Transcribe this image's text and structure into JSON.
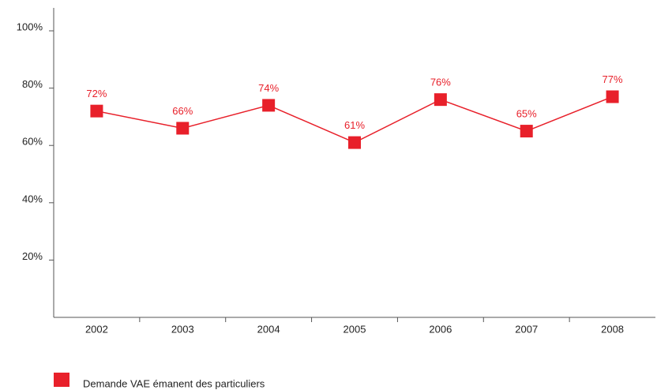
{
  "chart_data": {
    "type": "line",
    "categories": [
      "2002",
      "2003",
      "2004",
      "2005",
      "2006",
      "2007",
      "2008"
    ],
    "series": [
      {
        "name": "Demande VAE émanent des particuliers",
        "color": "#e8202a",
        "values": [
          72,
          66,
          74,
          61,
          76,
          65,
          77
        ],
        "value_labels": [
          "72%",
          "66%",
          "74%",
          "61%",
          "76%",
          "65%",
          "77%"
        ]
      }
    ],
    "ylim": [
      0,
      108
    ],
    "yticks": [
      {
        "value": 20,
        "label": "20%"
      },
      {
        "value": 40,
        "label": "40%"
      },
      {
        "value": 60,
        "label": "60%"
      },
      {
        "value": 80,
        "label": "80%"
      },
      {
        "value": 100,
        "label": "100%"
      }
    ],
    "grid": false,
    "legend": "bottom-left"
  }
}
